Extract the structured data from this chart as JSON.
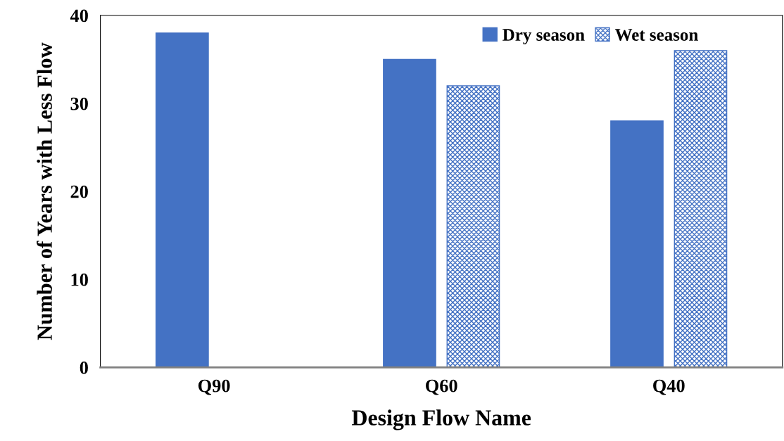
{
  "chart_data": {
    "type": "bar",
    "xlabel": "Design Flow Name",
    "ylabel": "Number of Years with Less Flow",
    "categories": [
      "Q90",
      "Q60",
      "Q40"
    ],
    "series": [
      {
        "name": "Dry season",
        "color": "#4472c4",
        "values": [
          38,
          35,
          28
        ]
      },
      {
        "name": "Wet season",
        "color": "#4472c4",
        "values": [
          null,
          32,
          36
        ]
      }
    ],
    "ylim": [
      0,
      40
    ],
    "yticks": [
      0,
      10,
      20,
      30,
      40
    ],
    "grid": false,
    "legend": "top right"
  }
}
